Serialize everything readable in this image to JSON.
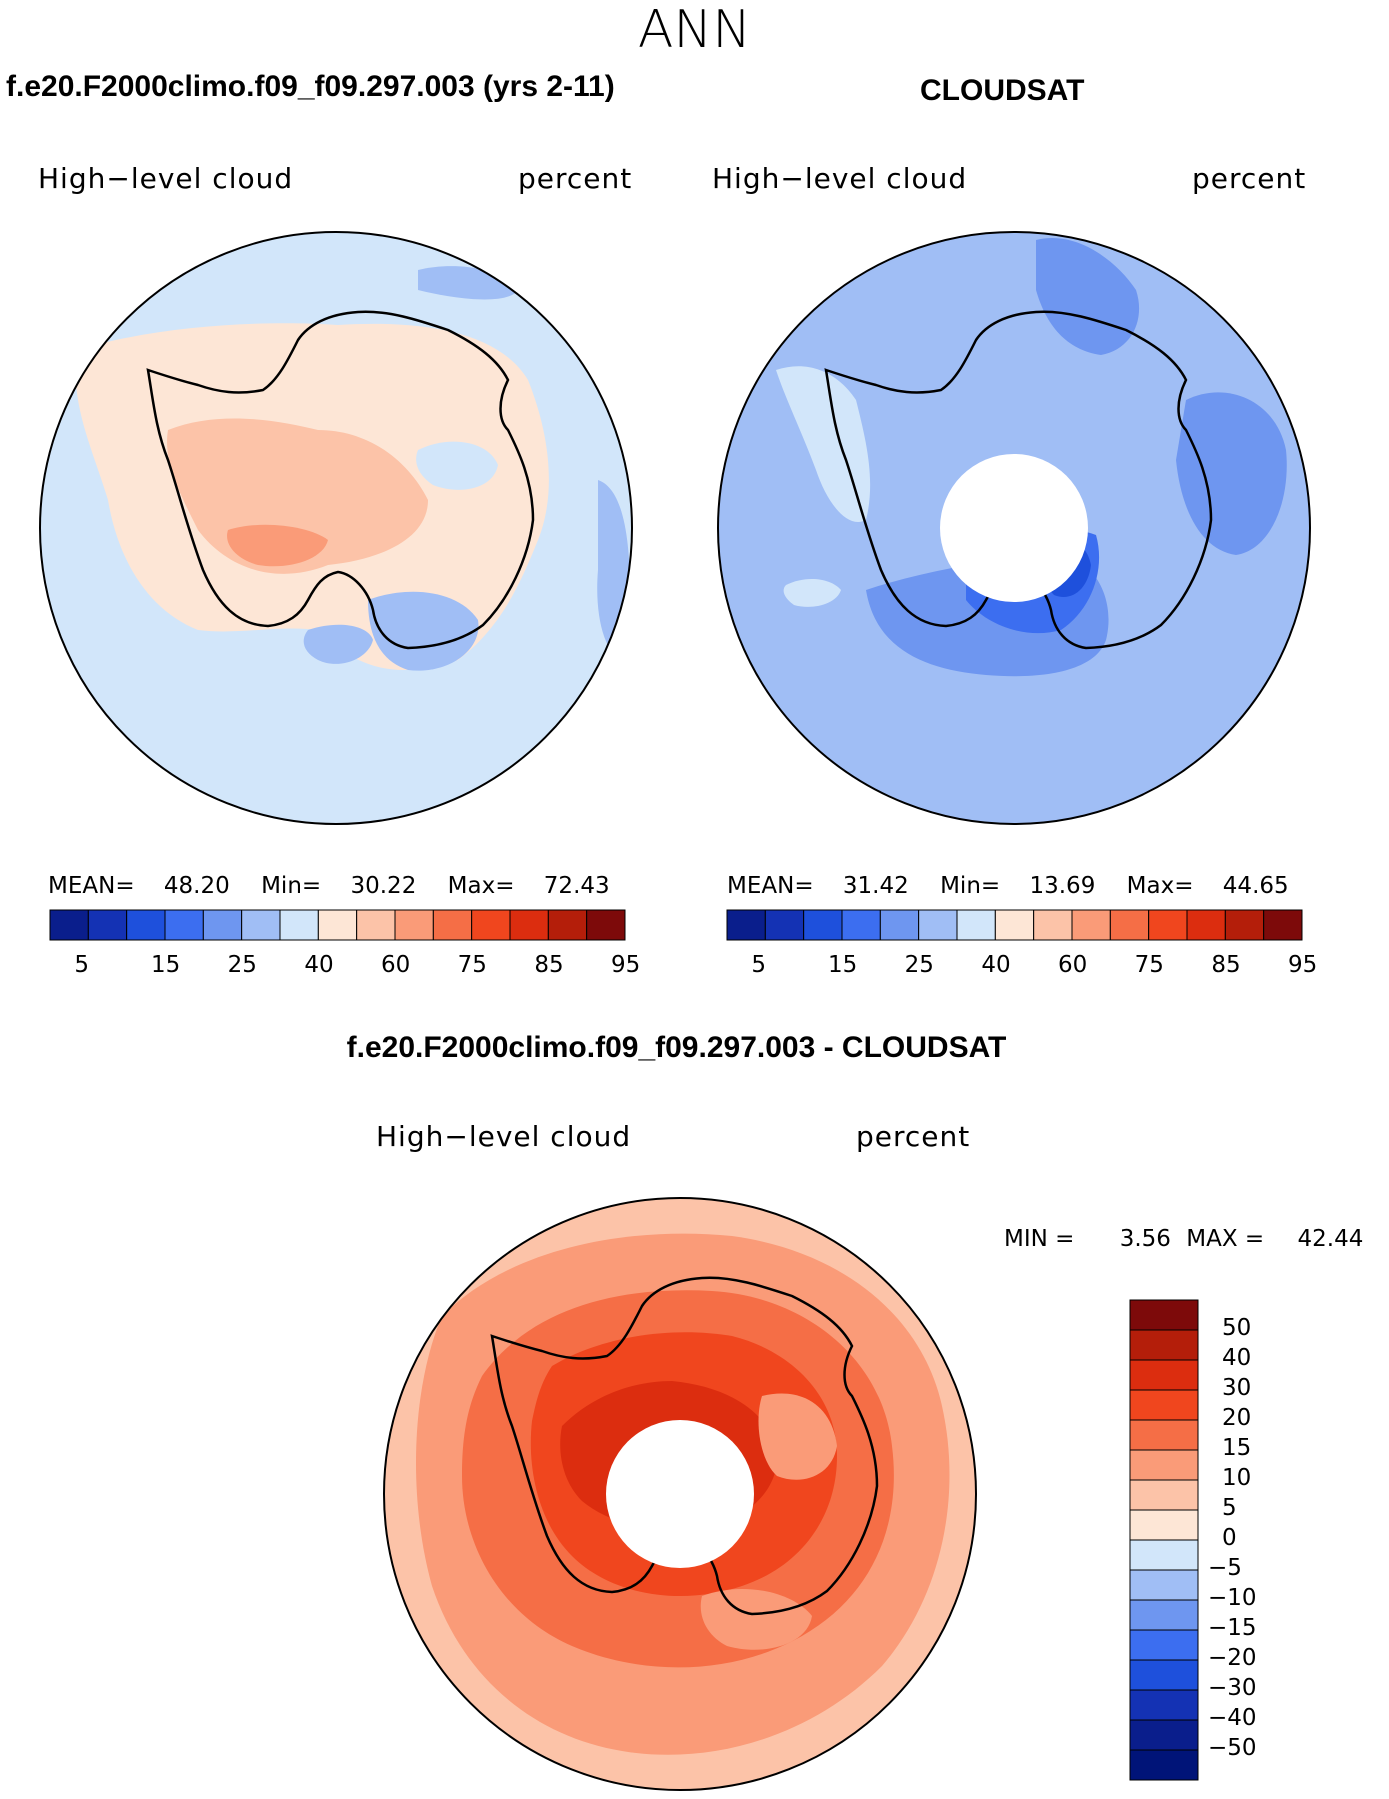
{
  "season": "ANN",
  "panels": {
    "model": {
      "title": "f.e20.F2000climo.f09_f09.297.003 (yrs 2-11)",
      "variable": "High−level cloud",
      "units": "percent",
      "stats": {
        "mean_label": "MEAN=",
        "mean": "48.20",
        "min_label": "Min=",
        "min": "30.22",
        "max_label": "Max=",
        "max": "72.43"
      }
    },
    "obs": {
      "title": "CLOUDSAT",
      "variable": "High−level cloud",
      "units": "percent",
      "stats": {
        "mean_label": "MEAN=",
        "mean": "31.42",
        "min_label": "Min=",
        "min": "13.69",
        "max_label": "Max=",
        "max": "44.65"
      }
    },
    "diff": {
      "title": "f.e20.F2000climo.f09_f09.297.003 - CLOUDSAT",
      "variable": "High−level cloud",
      "units": "percent",
      "stats": {
        "min_label": "MIN =",
        "min": "3.56",
        "max_label": "MAX =",
        "max": "42.44"
      }
    }
  },
  "colorbar_abs": {
    "colors": [
      "#0a1e8c",
      "#1432b4",
      "#1e50dc",
      "#3c6ef0",
      "#6e96f0",
      "#a0bef5",
      "#d2e6fa",
      "#fde6d6",
      "#fcc3a8",
      "#fa9b78",
      "#f56e46",
      "#f0461e",
      "#dc2d0f",
      "#b41e0a",
      "#7d0a0a"
    ],
    "ticks": [
      "5",
      "15",
      "25",
      "40",
      "60",
      "75",
      "85",
      "95"
    ]
  },
  "colorbar_diff": {
    "colors": [
      "#7d0a0a",
      "#b41e0a",
      "#dc2d0f",
      "#f0461e",
      "#f56e46",
      "#fa9b78",
      "#fcc3a8",
      "#fde6d6",
      "#d2e6fa",
      "#a0bef5",
      "#6e96f0",
      "#3c6ef0",
      "#1e50dc",
      "#1432b4",
      "#0a1e8c",
      "#001478"
    ],
    "ticks": [
      "50",
      "40",
      "30",
      "20",
      "15",
      "10",
      "5",
      "0",
      "−5",
      "−10",
      "−15",
      "−20",
      "−30",
      "−40",
      "−50"
    ]
  },
  "map_colors": {
    "model_ocean": "#d2e6fa",
    "model_land": "#fde6d6",
    "model_high": "#fcc3a8",
    "model_peak": "#fa9b78",
    "model_low": "#a0bef5",
    "obs_ocean": "#a0bef5",
    "obs_mid": "#6e96f0",
    "obs_low": "#3c6ef0",
    "obs_lowest": "#1e50dc",
    "obs_light": "#d2e6fa",
    "diff_outer": "#fcc3a8",
    "diff_mid": "#fa9b78",
    "diff_inner": "#f56e46",
    "diff_core": "#f0461e",
    "diff_peak": "#dc2d0f"
  }
}
